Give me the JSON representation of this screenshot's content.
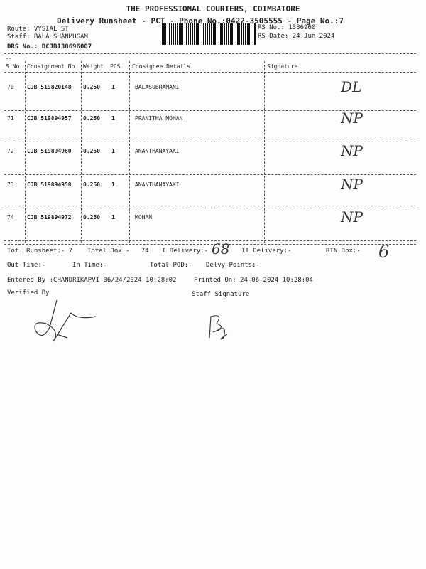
{
  "header": {
    "company": "THE PROFESSIONAL COURIERS, COIMBATORE",
    "subtitle": "Delivery Runsheet - PCT - Phone No.:0422-3505555 - Page No.:7",
    "route": "Route: VYSIAL ST",
    "staff": "Staff: BALA SHANMUGAM",
    "drs": "DRS No.: DCJB138696007",
    "rs_no": "RS No.: 1386960",
    "rs_date": "RS Date: 24-Jun-2024"
  },
  "table": {
    "columns": [
      "S No",
      "Consignment No",
      "Weight",
      "PCS",
      "Consignee Details",
      "Signature"
    ],
    "rows": [
      {
        "sno": "70",
        "cons": "CJB 519820148",
        "weight": "0.250",
        "pcs": "1",
        "consignee": "BALASUBRAMANI",
        "sig": "DL"
      },
      {
        "sno": "71",
        "cons": "CJB 519894957",
        "weight": "0.250",
        "pcs": "1",
        "consignee": "PRANITHA MOHAN",
        "sig": "NP"
      },
      {
        "sno": "72",
        "cons": "CJB 519894960",
        "weight": "0.250",
        "pcs": "1",
        "consignee": "ANANTHANAYAKI",
        "sig": "NP"
      },
      {
        "sno": "73",
        "cons": "CJB 519894958",
        "weight": "0.250",
        "pcs": "1",
        "consignee": "ANANTHANAYAKI",
        "sig": "NP"
      },
      {
        "sno": "74",
        "cons": "CJB 519894972",
        "weight": "0.250",
        "pcs": "1",
        "consignee": "MOHAN",
        "sig": "NP"
      }
    ]
  },
  "summary": {
    "tot_runsheet": "Tot. Runsheet:- 7",
    "total_dox": "Total Dox:-   74",
    "i_delivery": "I Delivery:-",
    "i_delivery_hw": "68",
    "ii_delivery": "II Delivery:-",
    "rtn_dox": "RTN Dox:-",
    "rtn_dox_hw": "6",
    "out_time": "Out Time:-",
    "in_time": "In Time:-",
    "total_pod": "Total POD:-",
    "delvy_points": "Delvy Points:-",
    "entered_by": "Entered By :CHANDRIKAPVI 06/24/2024 10:28:02",
    "printed_on": "Printed On: 24-06-2024 10:28:04",
    "verified_by": "Verified By",
    "staff_signature": "Staff Signature"
  }
}
